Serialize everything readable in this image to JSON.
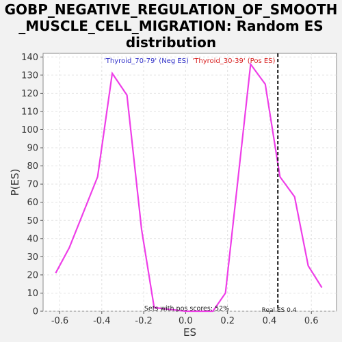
{
  "title_lines": [
    "GOBP_NEGATIVE_REGULATION_OF_SMOOTH",
    "_MUSCLE_CELL_MIGRATION: Random ES",
    "distribution"
  ],
  "chart_data": {
    "type": "line",
    "xlabel": "ES",
    "ylabel": "P(ES)",
    "xlim": [
      -0.68,
      0.72
    ],
    "ylim": [
      0,
      142
    ],
    "xticks": [
      -0.6,
      -0.4,
      -0.2,
      0.0,
      0.2,
      0.4,
      0.6
    ],
    "xtick_labels": [
      "-0.6",
      "-0.4",
      "-0.2",
      "0.0",
      "0.2",
      "0.4",
      "0.6"
    ],
    "yticks": [
      0,
      10,
      20,
      30,
      40,
      50,
      60,
      70,
      80,
      90,
      100,
      110,
      120,
      130,
      140
    ],
    "ytick_labels": [
      "0",
      "10",
      "20",
      "30",
      "40",
      "50",
      "60",
      "70",
      "80",
      "90",
      "100",
      "110",
      "120",
      "130",
      "140"
    ],
    "grid": true,
    "series": [
      {
        "color": "#ee3ee8",
        "x": [
          -0.62,
          -0.555,
          -0.42,
          -0.35,
          -0.28,
          -0.21,
          -0.15,
          0.0,
          0.13,
          0.19,
          0.31,
          0.38,
          0.45,
          0.52,
          0.585,
          0.65
        ],
        "y": [
          21,
          35,
          74,
          131,
          119,
          45,
          2,
          0,
          0,
          10,
          136,
          125,
          74,
          63,
          25,
          13
        ]
      }
    ],
    "real_es": 0.44,
    "annotations": {
      "neg_label": "'Thyroid_70-79' (Neg ES)",
      "neg_color": "#3030c8",
      "pos_label": "'Thyroid_30-39' (Pos ES)",
      "pos_color": "#d82020",
      "sets_label": "Sets with pos scores: 52%",
      "real_es_label": "Real ES 0.4"
    }
  }
}
